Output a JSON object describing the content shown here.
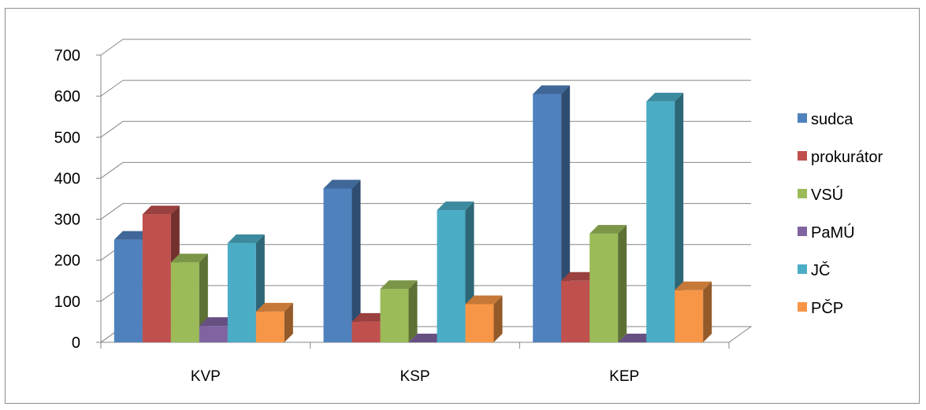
{
  "chart_data": {
    "type": "bar",
    "style": "3d-clustered-column",
    "categories": [
      "KVP",
      "KSP",
      "KEP"
    ],
    "series": [
      {
        "name": "sudca",
        "color": "#4F81BD",
        "values": [
          250,
          375,
          605
        ]
      },
      {
        "name": "prokurátor",
        "color": "#C0504D",
        "values": [
          312,
          50,
          150
        ]
      },
      {
        "name": "VSÚ",
        "color": "#9BBB59",
        "values": [
          195,
          130,
          265
        ]
      },
      {
        "name": "PaMÚ",
        "color": "#8064A2",
        "values": [
          40,
          0,
          0
        ]
      },
      {
        "name": "JČ",
        "color": "#4BACC6",
        "values": [
          242,
          322,
          587
        ]
      },
      {
        "name": "PČP",
        "color": "#F79646",
        "values": [
          75,
          93,
          127
        ]
      }
    ],
    "yticks": [
      0,
      100,
      200,
      300,
      400,
      500,
      600,
      700
    ],
    "ylim": [
      0,
      700
    ],
    "grid": true,
    "legend_position": "right"
  }
}
